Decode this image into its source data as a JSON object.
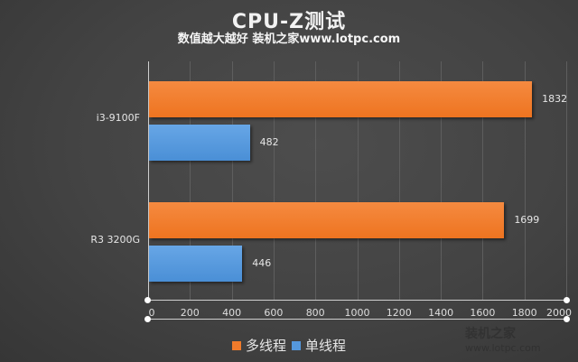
{
  "header": {
    "title": "CPU-Z测试",
    "subtitle": "数值越大越好 装机之家www.lotpc.com"
  },
  "chart_data": {
    "type": "bar",
    "orientation": "horizontal",
    "title": "CPU-Z测试",
    "subtitle": "数值越大越好 装机之家www.lotpc.com",
    "categories": [
      "i3-9100F",
      "R3 3200G"
    ],
    "series": [
      {
        "name": "多线程",
        "color": "#f07b2b",
        "values": [
          1832,
          1699
        ]
      },
      {
        "name": "单线程",
        "color": "#5598dd",
        "values": [
          482,
          446
        ]
      }
    ],
    "xlabel": "",
    "ylabel": "",
    "xlim": [
      0,
      2000
    ],
    "xticks": [
      "0",
      "200",
      "400",
      "600",
      "800",
      "1000",
      "1200",
      "1400",
      "1600",
      "1800",
      "2000"
    ],
    "grid": true,
    "legend_position": "bottom"
  },
  "labels": {
    "cat0": "i3-9100F",
    "cat1": "R3 3200G",
    "v_multi0": "1832",
    "v_single0": "482",
    "v_multi1": "1699",
    "v_single1": "446"
  },
  "legend": {
    "multi": "多线程",
    "single": "单线程"
  },
  "watermark": {
    "name": "装机之家",
    "url": "www.lotpc.com"
  }
}
